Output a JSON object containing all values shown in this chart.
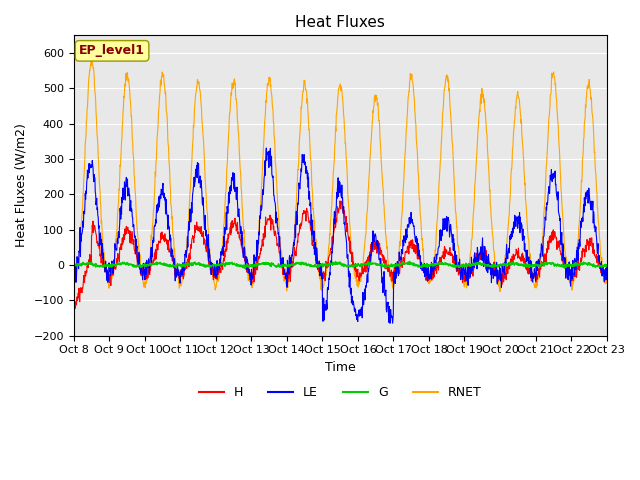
{
  "title": "Heat Fluxes",
  "xlabel": "Time",
  "ylabel": "Heat Fluxes (W/m2)",
  "ylim": [
    -200,
    650
  ],
  "annotation_text": "EP_level1",
  "legend_labels": [
    "H",
    "LE",
    "G",
    "RNET"
  ],
  "colors": {
    "H": "#ff0000",
    "LE": "#0000ff",
    "G": "#00cc00",
    "RNET": "#ffa500"
  },
  "background_color": "#e8e8e8",
  "xtick_labels": [
    "Oct 8",
    "Oct 9",
    "Oct 10",
    "Oct 11",
    "Oct 12",
    "Oct 13",
    "Oct 14",
    "Oct 15",
    "Oct 16",
    "Oct 17",
    "Oct 18",
    "Oct 19",
    "Oct 20",
    "Oct 21",
    "Oct 22",
    "Oct 23"
  ],
  "n_days": 15,
  "start_day": 8
}
